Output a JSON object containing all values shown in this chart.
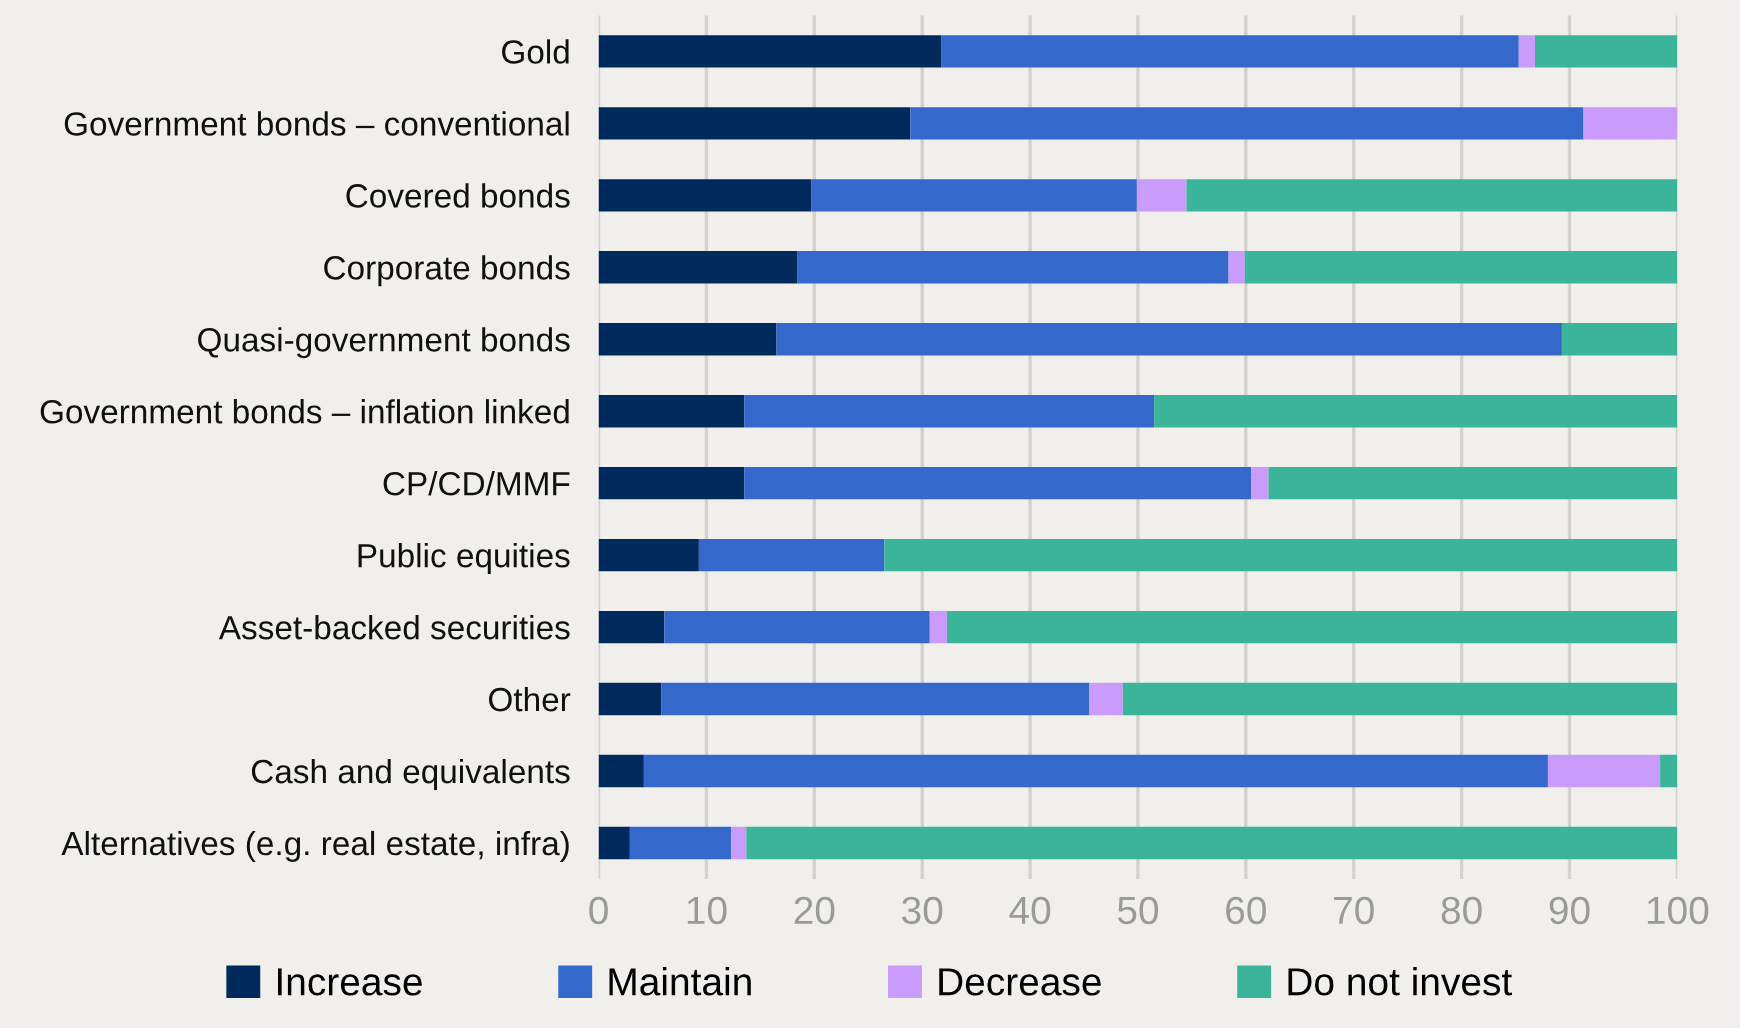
{
  "chart_data": {
    "type": "bar",
    "orientation": "horizontal",
    "stacked": true,
    "categories": [
      "Gold",
      "Government bonds – conventional",
      "Covered bonds",
      "Corporate bonds",
      "Quasi-government bonds",
      "Government bonds – inflation linked",
      "CP/CD/MMF",
      "Public equities",
      "Asset-backed securities",
      "Other",
      "Cash and equivalents",
      "Alternatives (e.g. real estate, infra)"
    ],
    "series": [
      {
        "name": "Increase",
        "color": "#002a5c",
        "values": [
          31.8,
          28.9,
          19.7,
          18.4,
          16.5,
          13.5,
          13.5,
          9.3,
          6.1,
          5.8,
          4.2,
          2.9
        ]
      },
      {
        "name": "Maintain",
        "color": "#3568cb",
        "values": [
          53.5,
          62.4,
          30.2,
          40.0,
          72.8,
          38.0,
          47.0,
          17.2,
          24.6,
          39.7,
          83.8,
          9.4
        ]
      },
      {
        "name": "Decrease",
        "color": "#c99bfa",
        "values": [
          1.5,
          8.7,
          4.6,
          1.5,
          0,
          0,
          1.6,
          0,
          1.6,
          3.1,
          10.4,
          1.4
        ]
      },
      {
        "name": "Do not invest",
        "color": "#3ab59a",
        "values": [
          13.2,
          0,
          45.5,
          40.1,
          10.7,
          48.5,
          37.9,
          73.5,
          67.7,
          51.4,
          1.6,
          86.3
        ]
      }
    ],
    "xlim": [
      0,
      100
    ],
    "xticks": [
      0,
      10,
      20,
      30,
      40,
      50,
      60,
      70,
      80,
      90,
      100
    ],
    "grid": "x",
    "legend": "bottom"
  }
}
